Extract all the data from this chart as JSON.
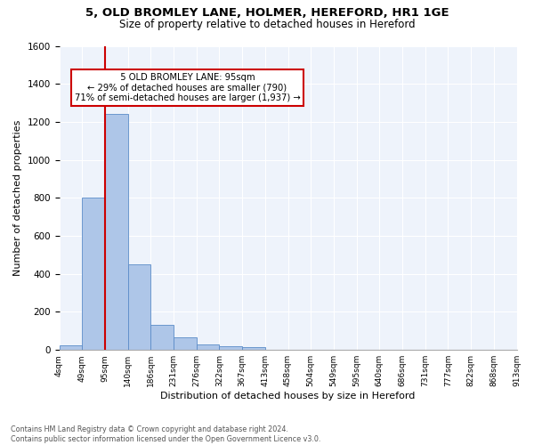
{
  "title_line1": "5, OLD BROMLEY LANE, HOLMER, HEREFORD, HR1 1GE",
  "title_line2": "Size of property relative to detached houses in Hereford",
  "xlabel": "Distribution of detached houses by size in Hereford",
  "ylabel": "Number of detached properties",
  "footnote": "Contains HM Land Registry data © Crown copyright and database right 2024.\nContains public sector information licensed under the Open Government Licence v3.0.",
  "bin_labels": [
    "4sqm",
    "49sqm",
    "95sqm",
    "140sqm",
    "186sqm",
    "231sqm",
    "276sqm",
    "322sqm",
    "367sqm",
    "413sqm",
    "458sqm",
    "504sqm",
    "549sqm",
    "595sqm",
    "640sqm",
    "686sqm",
    "731sqm",
    "777sqm",
    "822sqm",
    "868sqm",
    "913sqm"
  ],
  "bar_heights": [
    25,
    800,
    1240,
    450,
    130,
    65,
    28,
    18,
    15,
    0,
    0,
    0,
    0,
    0,
    0,
    0,
    0,
    0,
    0,
    0
  ],
  "bar_color": "#aec6e8",
  "bar_edge_color": "#5b8cc8",
  "bg_color": "#eef3fb",
  "grid_color": "#ffffff",
  "marker_label": "5 OLD BROMLEY LANE: 95sqm",
  "marker_pct_smaller": "29% of detached houses are smaller (790)",
  "marker_pct_larger": "71% of semi-detached houses are larger (1,937)",
  "marker_color": "#cc0000",
  "annotation_box_color": "#cc0000",
  "ylim": [
    0,
    1600
  ],
  "yticks": [
    0,
    200,
    400,
    600,
    800,
    1000,
    1200,
    1400,
    1600
  ]
}
